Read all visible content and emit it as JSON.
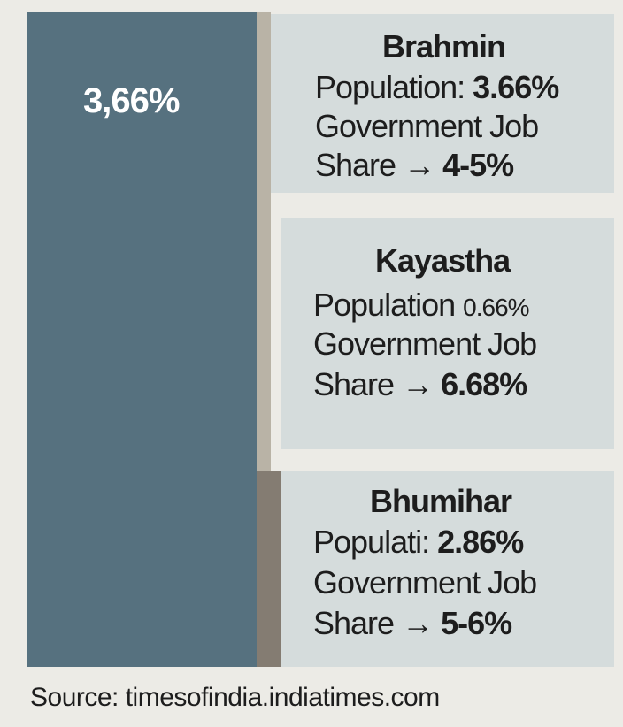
{
  "chart_data": {
    "type": "bar",
    "big_bar_label": "3,66%",
    "categories": [
      "Brahmin",
      "Kayastha",
      "Bhumihar"
    ],
    "items": [
      {
        "name": "Brahmin",
        "population_label": "Population:",
        "population": "3.66%",
        "job_line": "Government Job",
        "share_label": "Share →",
        "share": "4-5%"
      },
      {
        "name": "Kayastha",
        "population_label": "Population",
        "population": "0.66%",
        "job_line": "Government Job",
        "share_label": "Share →",
        "share": "6.68%"
      },
      {
        "name": "Bhumihar",
        "population_label": "Populati:",
        "population": "2.86%",
        "job_line": "Government Job",
        "share_label": "Share →",
        "share": "5-6%"
      }
    ],
    "source": "Source: timesofindia.indiatimes.com"
  },
  "colors": {
    "big_bar": "#56717f",
    "card": "#d5dcdc",
    "background": "#ecebe6"
  }
}
